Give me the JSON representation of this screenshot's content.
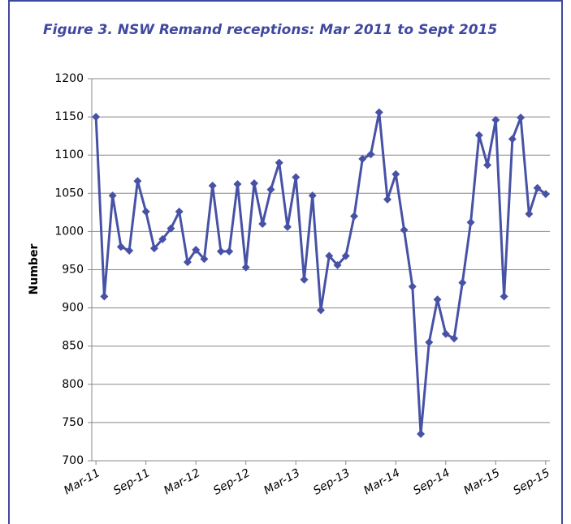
{
  "chart_data": {
    "type": "line",
    "title": "Figure 3. NSW Remand receptions: Mar 2011 to Sept 2015",
    "y_label": "Number",
    "categories": [
      "Mar-11",
      null,
      null,
      null,
      null,
      null,
      "Sep-11",
      null,
      null,
      null,
      null,
      null,
      "Mar-12",
      null,
      null,
      null,
      null,
      null,
      "Sep-12",
      null,
      null,
      null,
      null,
      null,
      "Mar-13",
      null,
      null,
      null,
      null,
      null,
      "Sep-13",
      null,
      null,
      null,
      null,
      null,
      "Mar-14",
      null,
      null,
      null,
      null,
      null,
      "Sep-14",
      null,
      null,
      null,
      null,
      null,
      "Mar-15",
      null,
      null,
      null,
      null,
      null,
      "Sep-15"
    ],
    "values": [
      1150,
      915,
      1047,
      980,
      975,
      1066,
      1026,
      978,
      990,
      1004,
      1026,
      960,
      976,
      964,
      1060,
      974,
      974,
      1062,
      953,
      1063,
      1010,
      1055,
      1090,
      1006,
      1071,
      937,
      1047,
      897,
      968,
      956,
      968,
      1020,
      1095,
      1101,
      1156,
      1042,
      1075,
      1002,
      928,
      735,
      855,
      911,
      866,
      860,
      933,
      1012,
      1126,
      1087,
      1146,
      915,
      1121,
      1149,
      1023,
      1057,
      1049
    ],
    "color": "#4752a6",
    "ylim": [
      700,
      1200
    ],
    "yticks": [
      700,
      750,
      800,
      850,
      900,
      950,
      1000,
      1050,
      1100,
      1150,
      1200
    ],
    "grid": true
  }
}
